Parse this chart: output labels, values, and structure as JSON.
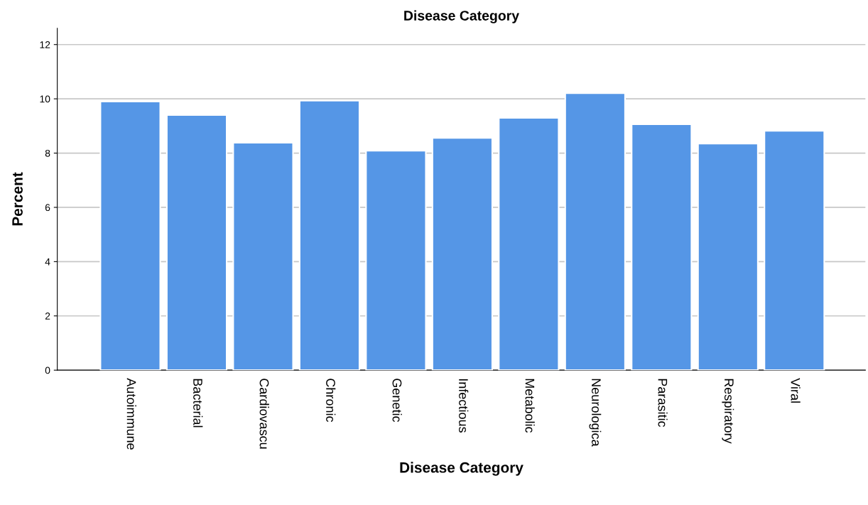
{
  "chart_data": {
    "type": "bar",
    "title": "Disease Category",
    "xlabel": "Disease Category",
    "ylabel": "Percent",
    "categories": [
      "Autoimmune",
      "Bacterial",
      "Cardiovascu",
      "Chronic",
      "Genetic",
      "Infectious",
      "Metabolic",
      "Neurologica",
      "Parasitic",
      "Respiratory",
      "Viral"
    ],
    "values": [
      9.9,
      9.4,
      8.38,
      9.93,
      8.09,
      8.56,
      9.3,
      10.21,
      9.06,
      8.35,
      8.82
    ],
    "color": "#5596e6",
    "ylim": [
      0,
      12.6
    ],
    "yticks": [
      0,
      2,
      4,
      6,
      8,
      10,
      12
    ],
    "grid": "y"
  }
}
